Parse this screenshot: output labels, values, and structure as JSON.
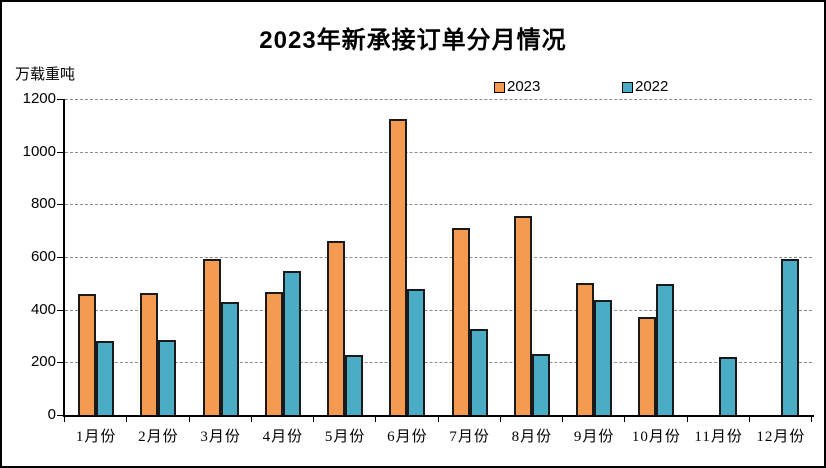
{
  "chart_data": {
    "type": "bar",
    "title": "2023年新承接订单分月情况",
    "unit_label": "万载重吨",
    "categories": [
      "1月份",
      "2月份",
      "3月份",
      "4月份",
      "5月份",
      "6月份",
      "7月份",
      "8月份",
      "9月份",
      "10月份",
      "11月份",
      "12月份"
    ],
    "series": [
      {
        "name": "2023",
        "color": "#F59B51",
        "values": [
          460,
          463,
          593,
          466,
          659,
          1124,
          709,
          755,
          503,
          372,
          null,
          null
        ]
      },
      {
        "name": "2022",
        "color": "#4AACC5",
        "values": [
          281,
          284,
          430,
          545,
          229,
          477,
          326,
          231,
          438,
          496,
          219,
          592
        ]
      }
    ],
    "ylim": [
      0,
      1200
    ],
    "yticks": [
      0,
      200,
      400,
      600,
      800,
      1000,
      1200
    ],
    "grid": "horizontal-dashed",
    "legend_position": "top-center",
    "colors": {
      "bar_border": "#1a1a1a",
      "gridline": "#8c8c8c",
      "axis": "#000000",
      "background": "#ffffff"
    }
  }
}
